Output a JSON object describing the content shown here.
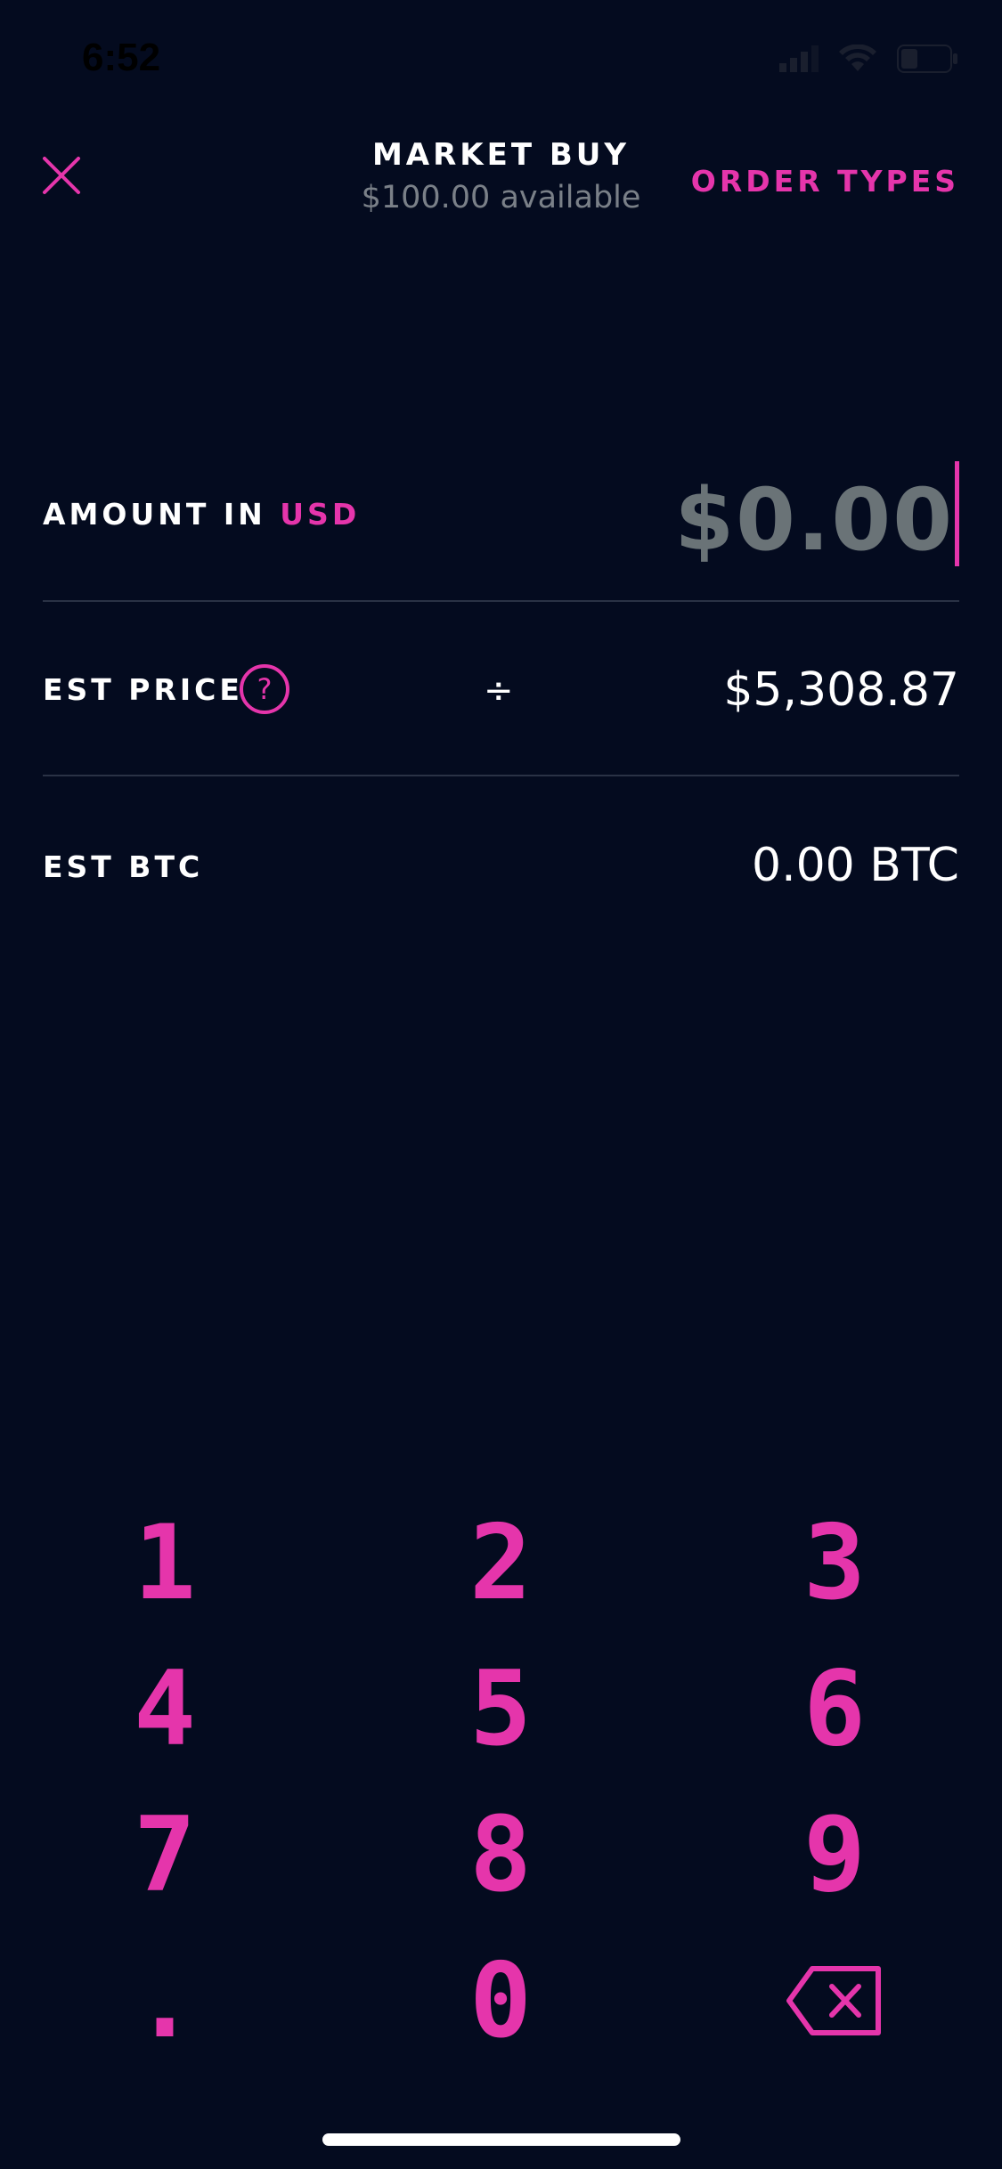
{
  "status_bar": {
    "time": "6:52"
  },
  "header": {
    "title": "MARKET BUY",
    "subtitle": "$100.00 available",
    "order_types_label": "ORDER TYPES"
  },
  "amount": {
    "label": "AMOUNT IN",
    "currency": "USD",
    "value": "$0.00"
  },
  "est_price": {
    "label": "EST PRICE",
    "operator": "÷",
    "value": "$5,308.87"
  },
  "est_btc": {
    "label": "EST BTC",
    "value": "0.00 BTC"
  },
  "keypad": {
    "keys": [
      "1",
      "2",
      "3",
      "4",
      "5",
      "6",
      "7",
      "8",
      "9",
      ".",
      "0"
    ]
  },
  "colors": {
    "accent": "#e535ab",
    "background": "#040b1f",
    "muted": "#6a7377"
  }
}
